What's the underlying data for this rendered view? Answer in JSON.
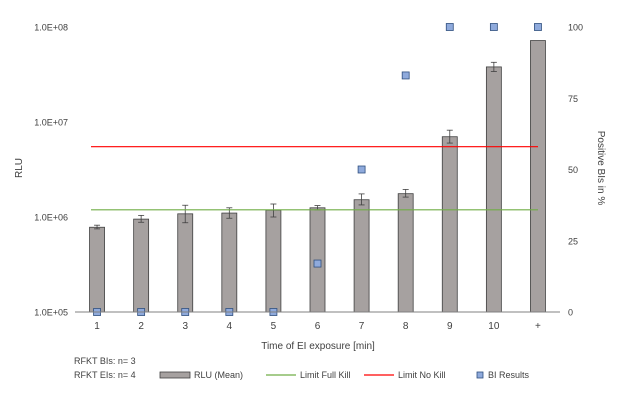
{
  "chart_data": {
    "type": "bar",
    "categories": [
      "1",
      "2",
      "3",
      "4",
      "5",
      "6",
      "7",
      "8",
      "9",
      "10",
      "+"
    ],
    "series": [
      {
        "name": "RLU (Mean)",
        "kind": "bar",
        "axis": "left",
        "values": [
          780000,
          950000,
          1080000,
          1100000,
          1180000,
          1250000,
          1520000,
          1760000,
          7000000,
          38000000,
          72000000
        ],
        "err_low": [
          750000,
          880000,
          870000,
          970000,
          1000000,
          1190000,
          1340000,
          1620000,
          6000000,
          34000000,
          72000000
        ],
        "err_high": [
          820000,
          1040000,
          1330000,
          1250000,
          1370000,
          1320000,
          1750000,
          1950000,
          8200000,
          42500000,
          72000000
        ],
        "color": "#a6a1a0"
      },
      {
        "name": "Limit Full Kill",
        "kind": "line",
        "axis": "left",
        "value": 1190000,
        "color": "#70ad47"
      },
      {
        "name": "Limit No Kill",
        "kind": "line",
        "axis": "left",
        "value": 5500000,
        "color": "#ff0000"
      },
      {
        "name": "BI Results",
        "kind": "scatter",
        "axis": "right",
        "values": [
          0,
          0,
          0,
          0,
          0,
          17,
          50,
          83,
          100,
          100,
          100
        ],
        "color": "#8faadc"
      }
    ],
    "xlabel": "Time of EI exposure [min]",
    "ylabel": "RLU",
    "y2label": "Positive BIs in %",
    "yscale": "log",
    "ylim": [
      100000,
      100000000
    ],
    "yticks": [
      "1.0E+05",
      "1.0E+06",
      "1.0E+07",
      "1.0E+08"
    ],
    "y2lim": [
      0,
      100
    ],
    "y2ticks": [
      "0",
      "25",
      "50",
      "75",
      "100"
    ],
    "grid": false,
    "legend_position": "bottom",
    "notes": [
      "RFKT BIs: n= 3",
      "RFKT EIs: n= 4"
    ]
  }
}
